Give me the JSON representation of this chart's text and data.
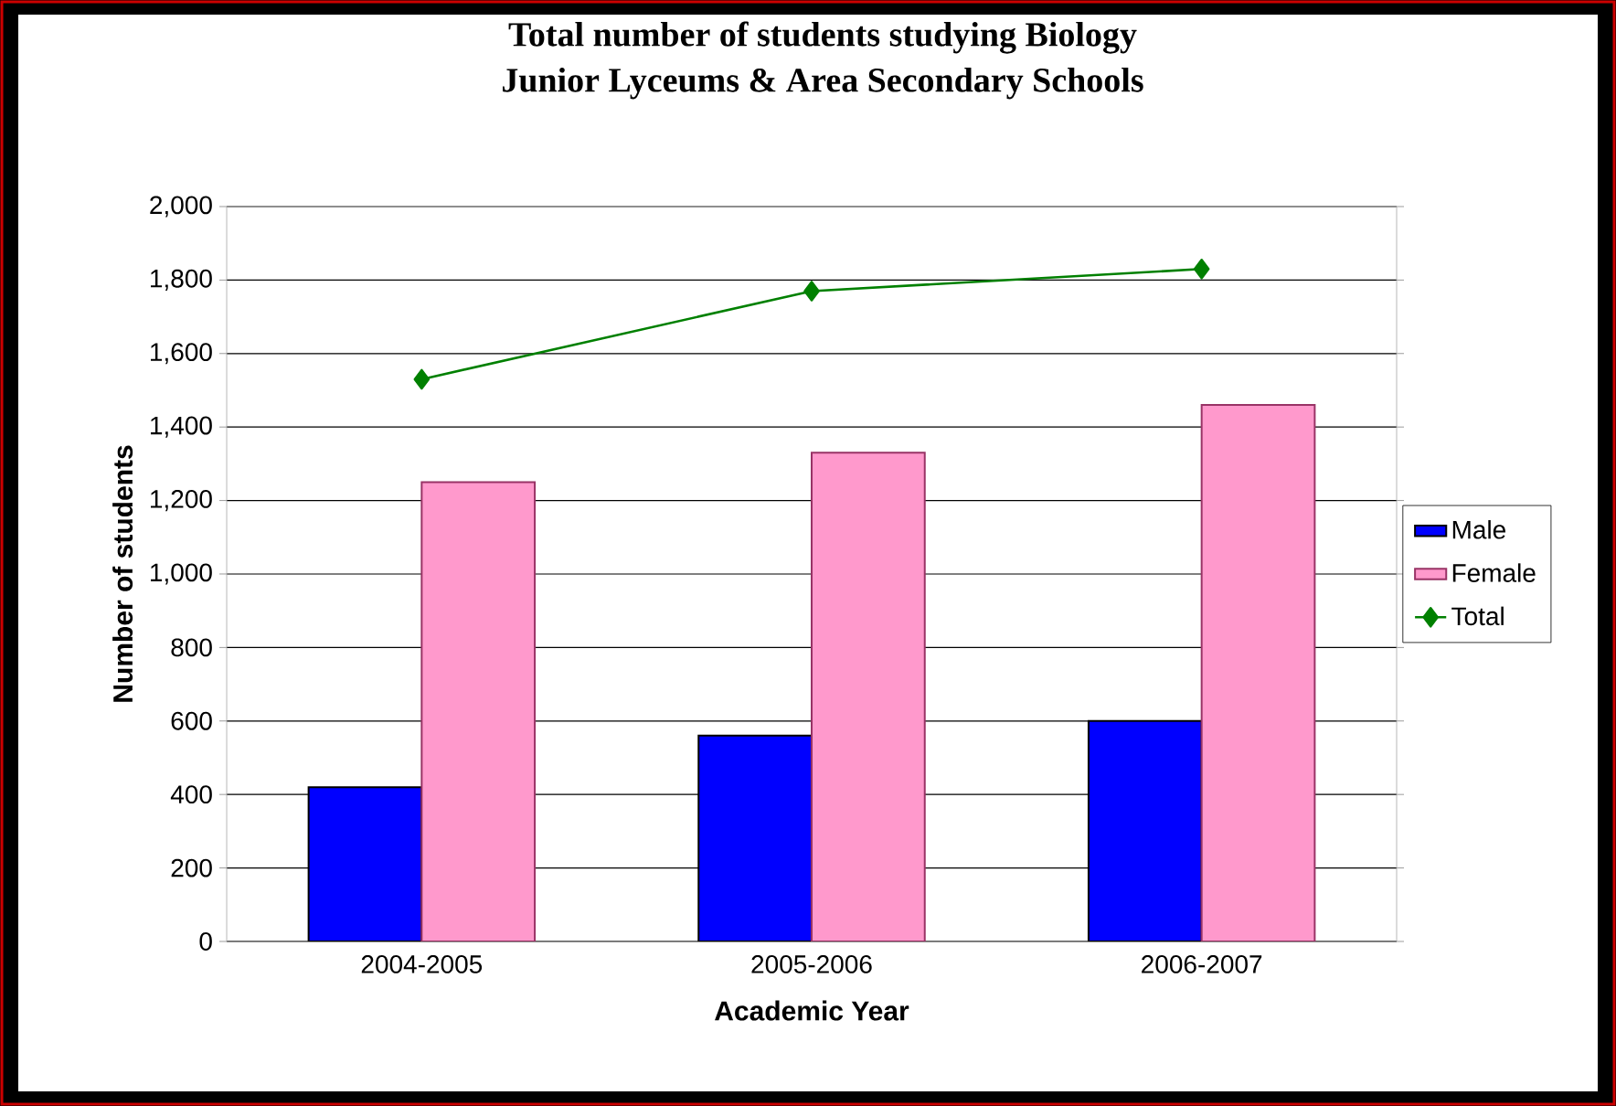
{
  "chart_data": {
    "type": "bar",
    "title": "Total number of students studying Biology",
    "subtitle": "Junior Lyceums & Area Secondary Schools",
    "xlabel": "Academic Year",
    "ylabel": "Number of students",
    "categories": [
      "2004-2005",
      "2005-2006",
      "2006-2007"
    ],
    "series": [
      {
        "name": "Male",
        "color": "#0000ff",
        "values": [
          420,
          560,
          600
        ]
      },
      {
        "name": "Female",
        "color": "#ff99cc",
        "values": [
          1250,
          1330,
          1460
        ]
      },
      {
        "name": "Total",
        "type": "line",
        "marker": "diamond",
        "color": "#008000",
        "values": [
          1530,
          1770,
          1830
        ]
      }
    ],
    "ylim": [
      0,
      2000
    ],
    "yticks": [
      0,
      200,
      400,
      600,
      800,
      {
        "value": 1000,
        "label": "1,000"
      },
      {
        "value": 1200,
        "label": "1,200"
      },
      {
        "value": 1400,
        "label": "1,400"
      },
      {
        "value": 1600,
        "label": "1,600"
      },
      {
        "value": 1800,
        "label": "1,800"
      },
      {
        "value": 2000,
        "label": "2,000"
      }
    ],
    "grid": "y",
    "legend": "right"
  }
}
